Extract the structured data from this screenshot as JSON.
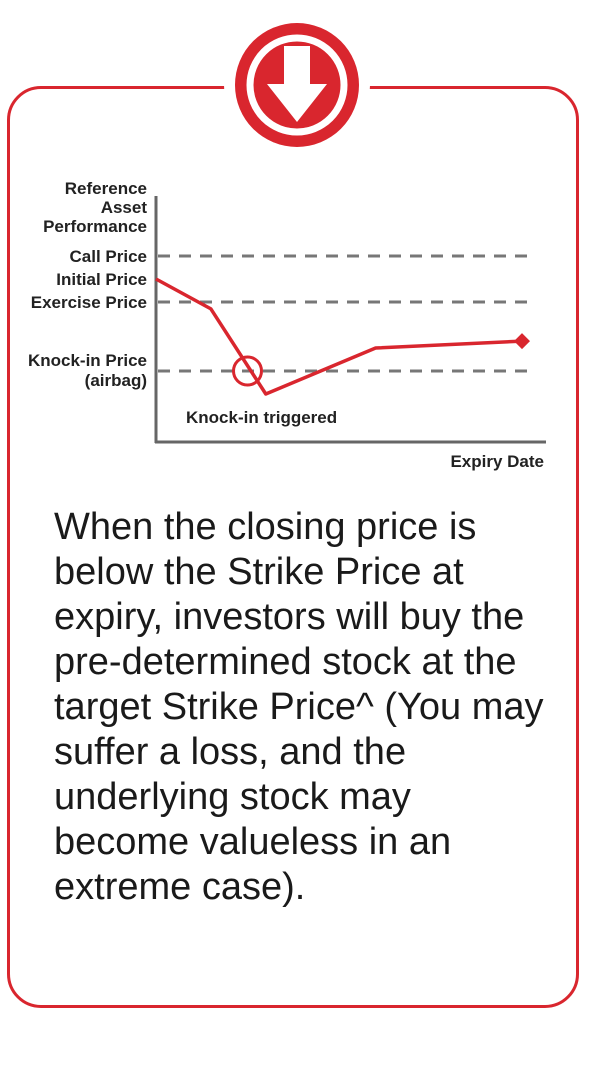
{
  "accent_color": "#d9262e",
  "badge_icon": "arrow-down-icon",
  "chart_data": {
    "type": "line",
    "title": "",
    "ylabel": "Reference Asset Performance",
    "xlabel": "Expiry Date",
    "levels": [
      {
        "label": "Call Price",
        "value": 100
      },
      {
        "label": "Initial Price",
        "value": 90
      },
      {
        "label": "Exercise Price",
        "value": 80
      },
      {
        "label": "Knock-in Price (airbag)",
        "value": 50
      }
    ],
    "x": [
      0,
      1.5,
      3,
      6,
      10
    ],
    "y": [
      90,
      77,
      40,
      60,
      63
    ],
    "annotations": [
      {
        "text": "Knock-in triggered",
        "x": 2.5,
        "y": 50
      }
    ],
    "grid": false
  },
  "caption": {
    "lines": [
      "When the closing price is",
      "below the Strike Price at",
      "expiry, investors will buy the",
      "pre-determined stock at the",
      "target Strike Price^ (You may",
      "suffer a loss, and the",
      "underlying stock may",
      "become valueless in an",
      "extreme case)."
    ]
  }
}
